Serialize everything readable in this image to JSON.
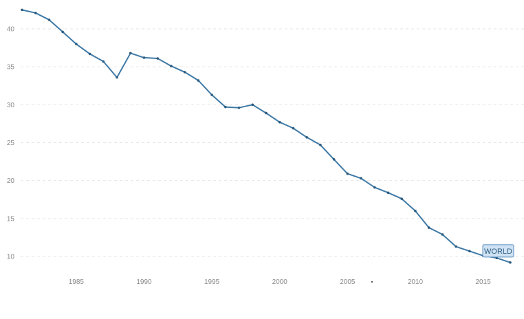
{
  "chart_data": {
    "type": "line",
    "title": "",
    "xlabel": "",
    "ylabel": "",
    "xlim": [
      1981,
      2017
    ],
    "ylim": [
      8.5,
      43
    ],
    "grid": true,
    "yticks": [
      10,
      15,
      20,
      25,
      30,
      35,
      40
    ],
    "xticks": [
      1985,
      1990,
      1995,
      2000,
      2005,
      2010,
      2015
    ],
    "series": [
      {
        "name": "WORLD",
        "color": "#3f7aa6",
        "x": [
          1981,
          1982,
          1983,
          1984,
          1985,
          1986,
          1987,
          1988,
          1989,
          1990,
          1991,
          1992,
          1993,
          1994,
          1995,
          1996,
          1997,
          1998,
          1999,
          2000,
          2001,
          2002,
          2003,
          2004,
          2005,
          2006,
          2007,
          2008,
          2009,
          2010,
          2011,
          2012,
          2013,
          2014,
          2015,
          2016,
          2017
        ],
        "y": [
          42.5,
          42.1,
          41.2,
          39.6,
          38.0,
          36.7,
          35.7,
          33.6,
          36.8,
          36.2,
          36.1,
          35.1,
          34.3,
          33.2,
          31.3,
          29.7,
          29.6,
          30.0,
          28.9,
          27.7,
          26.9,
          25.7,
          24.7,
          22.8,
          20.9,
          20.3,
          19.1,
          18.4,
          17.6,
          16.0,
          13.8,
          12.9,
          11.3,
          10.7,
          10.1,
          9.8,
          9.2
        ]
      }
    ],
    "legend": "end-of-line label"
  }
}
